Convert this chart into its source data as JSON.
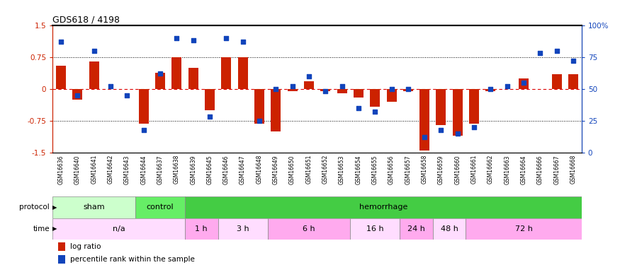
{
  "title": "GDS618 / 4198",
  "samples": [
    "GSM16636",
    "GSM16640",
    "GSM16641",
    "GSM16642",
    "GSM16643",
    "GSM16644",
    "GSM16637",
    "GSM16638",
    "GSM16639",
    "GSM16645",
    "GSM16646",
    "GSM16647",
    "GSM16648",
    "GSM16649",
    "GSM16650",
    "GSM16651",
    "GSM16652",
    "GSM16653",
    "GSM16654",
    "GSM16655",
    "GSM16656",
    "GSM16657",
    "GSM16658",
    "GSM16659",
    "GSM16660",
    "GSM16661",
    "GSM16662",
    "GSM16663",
    "GSM16664",
    "GSM16666",
    "GSM16667",
    "GSM16668"
  ],
  "log_ratio": [
    0.55,
    -0.25,
    0.65,
    0.0,
    0.0,
    -0.82,
    0.38,
    0.75,
    0.5,
    -0.5,
    0.75,
    0.75,
    -0.82,
    -1.0,
    -0.05,
    0.18,
    -0.05,
    -0.1,
    -0.2,
    -0.42,
    -0.3,
    -0.05,
    -1.45,
    -0.85,
    -1.1,
    -0.82,
    -0.05,
    0.0,
    0.25,
    0.0,
    0.35,
    0.35
  ],
  "percentile": [
    87,
    45,
    80,
    52,
    45,
    18,
    62,
    90,
    88,
    28,
    90,
    87,
    25,
    50,
    52,
    60,
    48,
    52,
    35,
    32,
    50,
    50,
    12,
    18,
    15,
    20,
    50,
    52,
    55,
    78,
    80,
    72
  ],
  "ylim": [
    -1.5,
    1.5
  ],
  "yticks": [
    -1.5,
    -0.75,
    0.0,
    0.75,
    1.5
  ],
  "ytick_labels": [
    "-1.5",
    "-0.75",
    "0",
    "0.75",
    "1.5"
  ],
  "right_yticks": [
    0,
    25,
    50,
    75,
    100
  ],
  "right_ytick_labels": [
    "0",
    "25",
    "50",
    "75",
    "100%"
  ],
  "bar_color": "#CC2200",
  "dot_color": "#1144BB",
  "hline_color": "#DD0000",
  "protocol_groups": [
    {
      "label": "sham",
      "start": 0,
      "end": 5,
      "color": "#CCFFCC"
    },
    {
      "label": "control",
      "start": 5,
      "end": 8,
      "color": "#66EE66"
    },
    {
      "label": "hemorrhage",
      "start": 8,
      "end": 32,
      "color": "#44CC44"
    }
  ],
  "time_groups": [
    {
      "label": "n/a",
      "start": 0,
      "end": 8,
      "color": "#FFDDFF"
    },
    {
      "label": "1 h",
      "start": 8,
      "end": 10,
      "color": "#FFAAEE"
    },
    {
      "label": "3 h",
      "start": 10,
      "end": 13,
      "color": "#FFDDFF"
    },
    {
      "label": "6 h",
      "start": 13,
      "end": 18,
      "color": "#FFAAEE"
    },
    {
      "label": "16 h",
      "start": 18,
      "end": 21,
      "color": "#FFDDFF"
    },
    {
      "label": "24 h",
      "start": 21,
      "end": 23,
      "color": "#FFAAEE"
    },
    {
      "label": "48 h",
      "start": 23,
      "end": 25,
      "color": "#FFDDFF"
    },
    {
      "label": "72 h",
      "start": 25,
      "end": 32,
      "color": "#FFAAEE"
    }
  ],
  "bg_color": "#FFFFFF",
  "plot_bg": "#FFFFFF",
  "label_color_red": "#CC2200",
  "label_color_blue": "#1144BB",
  "tick_label_bg": "#DDDDDD"
}
